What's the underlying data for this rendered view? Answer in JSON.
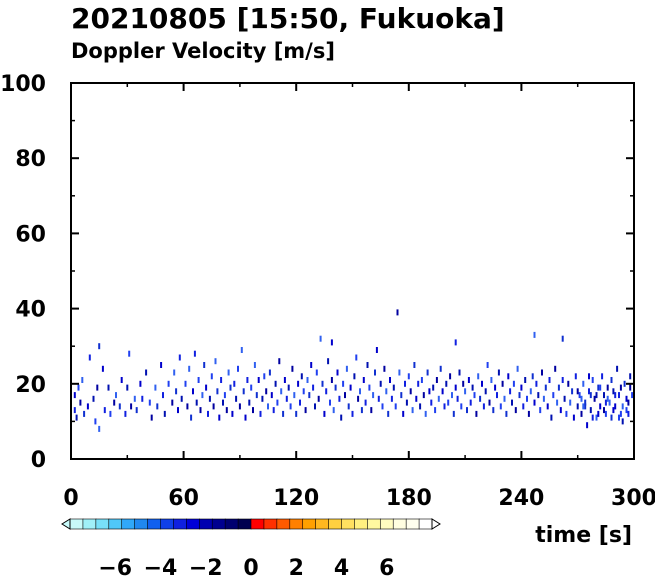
{
  "chart_data": {
    "type": "scatter",
    "title": "20210805 [15:50, Fukuoka]",
    "subtitle": "Doppler Velocity [m/s]",
    "xlabel": "time [s]",
    "ylabel": "",
    "xlim": [
      0,
      300
    ],
    "ylim": [
      0,
      100
    ],
    "x_ticks": [
      "0",
      "60",
      "120",
      "180",
      "240",
      "300"
    ],
    "y_ticks": [
      "0",
      "20",
      "40",
      "60",
      "80",
      "100"
    ],
    "grid": false,
    "colorbar": {
      "tick_labels": [
        "−6",
        "−4",
        "−2",
        "0",
        "2",
        "4",
        "6"
      ],
      "tick_values": [
        -6,
        -4,
        -2,
        0,
        2,
        4,
        6
      ],
      "range": [
        -8,
        8
      ],
      "colors": [
        "#c8fafa",
        "#a0f0f8",
        "#78e0f8",
        "#50c8f8",
        "#30a8f8",
        "#2088f0",
        "#1060f0",
        "#1040e8",
        "#1020e0",
        "#0000d8",
        "#0000b0",
        "#000090",
        "#000070",
        "#000050",
        "#ff0000",
        "#ff3000",
        "#ff5a00",
        "#ff8000",
        "#ffa000",
        "#ffb820",
        "#ffd040",
        "#ffe060",
        "#fff080",
        "#fff8a0",
        "#fffcc0",
        "#fffee0",
        "#ffffee",
        "#ffffff"
      ]
    },
    "series": [
      {
        "points": [
          [
            2,
            17
          ],
          [
            2,
            13
          ],
          [
            3,
            11
          ],
          [
            4,
            19
          ],
          [
            5,
            15
          ],
          [
            6,
            21
          ],
          [
            7,
            12
          ],
          [
            9,
            14
          ],
          [
            10,
            27
          ],
          [
            12,
            16
          ],
          [
            13,
            10
          ],
          [
            14,
            19
          ],
          [
            15,
            8
          ],
          [
            15,
            30
          ],
          [
            17,
            24
          ],
          [
            18,
            13
          ],
          [
            20,
            19
          ],
          [
            21,
            12
          ],
          [
            23,
            15
          ],
          [
            24,
            17
          ],
          [
            26,
            14
          ],
          [
            27,
            21
          ],
          [
            29,
            12
          ],
          [
            30,
            19
          ],
          [
            31,
            28
          ],
          [
            32,
            14
          ],
          [
            34,
            16
          ],
          [
            35,
            13
          ],
          [
            37,
            20
          ],
          [
            38,
            16
          ],
          [
            40,
            23
          ],
          [
            42,
            15
          ],
          [
            43,
            11
          ],
          [
            45,
            19
          ],
          [
            46,
            14
          ],
          [
            48,
            25
          ],
          [
            49,
            17
          ],
          [
            50,
            12
          ],
          [
            52,
            20
          ],
          [
            54,
            15
          ],
          [
            55,
            23
          ],
          [
            56,
            18
          ],
          [
            57,
            13
          ],
          [
            58,
            27
          ],
          [
            59,
            16
          ],
          [
            61,
            20
          ],
          [
            62,
            14
          ],
          [
            63,
            24
          ],
          [
            64,
            11
          ],
          [
            65,
            18
          ],
          [
            66,
            28
          ],
          [
            67,
            15
          ],
          [
            68,
            21
          ],
          [
            69,
            13
          ],
          [
            70,
            17
          ],
          [
            71,
            25
          ],
          [
            72,
            19
          ],
          [
            73,
            12
          ],
          [
            74,
            16
          ],
          [
            75,
            22
          ],
          [
            76,
            14
          ],
          [
            77,
            26
          ],
          [
            78,
            18
          ],
          [
            79,
            11
          ],
          [
            80,
            21
          ],
          [
            81,
            15
          ],
          [
            82,
            17
          ],
          [
            83,
            13
          ],
          [
            84,
            23
          ],
          [
            85,
            19
          ],
          [
            86,
            12
          ],
          [
            87,
            20
          ],
          [
            88,
            16
          ],
          [
            89,
            24
          ],
          [
            90,
            14
          ],
          [
            91,
            29
          ],
          [
            92,
            18
          ],
          [
            93,
            11
          ],
          [
            94,
            21
          ],
          [
            95,
            15
          ],
          [
            96,
            19
          ],
          [
            97,
            13
          ],
          [
            98,
            25
          ],
          [
            99,
            17
          ],
          [
            100,
            21
          ],
          [
            101,
            12
          ],
          [
            102,
            16
          ],
          [
            103,
            22
          ],
          [
            104,
            18
          ],
          [
            105,
            14
          ],
          [
            106,
            23
          ],
          [
            107,
            17
          ],
          [
            108,
            13
          ],
          [
            109,
            20
          ],
          [
            110,
            15
          ],
          [
            111,
            26
          ],
          [
            112,
            18
          ],
          [
            113,
            12
          ],
          [
            114,
            21
          ],
          [
            115,
            16
          ],
          [
            116,
            19
          ],
          [
            117,
            14
          ],
          [
            118,
            24
          ],
          [
            119,
            17
          ],
          [
            120,
            12
          ],
          [
            121,
            20
          ],
          [
            122,
            15
          ],
          [
            123,
            22
          ],
          [
            124,
            18
          ],
          [
            125,
            13
          ],
          [
            126,
            21
          ],
          [
            127,
            17
          ],
          [
            128,
            25
          ],
          [
            129,
            19
          ],
          [
            130,
            14
          ],
          [
            131,
            23
          ],
          [
            132,
            16
          ],
          [
            133,
            32
          ],
          [
            134,
            20
          ],
          [
            135,
            12
          ],
          [
            136,
            18
          ],
          [
            137,
            26
          ],
          [
            138,
            15
          ],
          [
            139,
            21
          ],
          [
            140,
            13
          ],
          [
            141,
            19
          ],
          [
            142,
            23
          ],
          [
            143,
            16
          ],
          [
            144,
            11
          ],
          [
            145,
            20
          ],
          [
            146,
            17
          ],
          [
            147,
            24
          ],
          [
            148,
            14
          ],
          [
            149,
            19
          ],
          [
            150,
            12
          ],
          [
            151,
            22
          ],
          [
            152,
            27
          ],
          [
            153,
            16
          ],
          [
            154,
            18
          ],
          [
            155,
            13
          ],
          [
            156,
            21
          ],
          [
            157,
            15
          ],
          [
            158,
            25
          ],
          [
            159,
            19
          ],
          [
            160,
            13
          ],
          [
            161,
            17
          ],
          [
            162,
            23
          ],
          [
            163,
            29
          ],
          [
            164,
            16
          ],
          [
            165,
            20
          ],
          [
            166,
            14
          ],
          [
            167,
            24
          ],
          [
            168,
            18
          ],
          [
            169,
            12
          ],
          [
            170,
            21
          ],
          [
            171,
            16
          ],
          [
            172,
            19
          ],
          [
            173,
            14
          ],
          [
            174,
            39
          ],
          [
            175,
            23
          ],
          [
            176,
            17
          ],
          [
            177,
            12
          ],
          [
            178,
            20
          ],
          [
            179,
            15
          ],
          [
            180,
            22
          ],
          [
            181,
            18
          ],
          [
            182,
            13
          ],
          [
            183,
            25
          ],
          [
            184,
            16
          ],
          [
            185,
            20
          ],
          [
            186,
            14
          ],
          [
            187,
            21
          ],
          [
            188,
            17
          ],
          [
            189,
            12
          ],
          [
            190,
            23
          ],
          [
            191,
            18
          ],
          [
            192,
            15
          ],
          [
            193,
            19
          ],
          [
            194,
            13
          ],
          [
            195,
            21
          ],
          [
            196,
            16
          ],
          [
            197,
            24
          ],
          [
            198,
            18
          ],
          [
            199,
            14
          ],
          [
            200,
            20
          ],
          [
            201,
            15
          ],
          [
            202,
            22
          ],
          [
            203,
            17
          ],
          [
            204,
            12
          ],
          [
            205,
            19
          ],
          [
            206,
            16
          ],
          [
            207,
            23
          ],
          [
            208,
            14
          ],
          [
            209,
            20
          ],
          [
            210,
            18
          ],
          [
            211,
            13
          ],
          [
            212,
            21
          ],
          [
            213,
            15
          ],
          [
            214,
            19
          ],
          [
            215,
            17
          ],
          [
            216,
            12
          ],
          [
            217,
            22
          ],
          [
            218,
            16
          ],
          [
            219,
            20
          ],
          [
            220,
            14
          ],
          [
            221,
            18
          ],
          [
            222,
            25
          ],
          [
            223,
            15
          ],
          [
            224,
            21
          ],
          [
            225,
            13
          ],
          [
            226,
            19
          ],
          [
            227,
            17
          ],
          [
            228,
            23
          ],
          [
            229,
            14
          ],
          [
            230,
            20
          ],
          [
            231,
            16
          ],
          [
            232,
            12
          ],
          [
            233,
            22
          ],
          [
            234,
            18
          ],
          [
            235,
            15
          ],
          [
            236,
            20
          ],
          [
            237,
            13
          ],
          [
            238,
            24
          ],
          [
            239,
            17
          ],
          [
            240,
            19
          ],
          [
            241,
            14
          ],
          [
            242,
            21
          ],
          [
            243,
            16
          ],
          [
            244,
            12
          ],
          [
            245,
            18
          ],
          [
            246,
            22
          ],
          [
            247,
            15
          ],
          [
            248,
            20
          ],
          [
            249,
            17
          ],
          [
            250,
            13
          ],
          [
            251,
            23
          ],
          [
            252,
            16
          ],
          [
            253,
            19
          ],
          [
            254,
            14
          ],
          [
            255,
            21
          ],
          [
            256,
            11
          ],
          [
            257,
            17
          ],
          [
            258,
            24
          ],
          [
            259,
            15
          ],
          [
            260,
            19
          ],
          [
            261,
            13
          ],
          [
            262,
            21
          ],
          [
            263,
            16
          ],
          [
            264,
            12
          ],
          [
            265,
            20
          ],
          [
            266,
            15
          ],
          [
            267,
            18
          ],
          [
            268,
            11
          ],
          [
            269,
            22
          ],
          [
            270,
            14
          ],
          [
            271,
            17
          ],
          [
            272,
            12
          ],
          [
            273,
            20
          ],
          [
            274,
            15
          ],
          [
            275,
            9
          ],
          [
            276,
            18
          ],
          [
            277,
            13
          ],
          [
            278,
            21
          ],
          [
            279,
            16
          ],
          [
            280,
            11
          ],
          [
            281,
            19
          ],
          [
            282,
            14
          ],
          [
            283,
            22
          ],
          [
            284,
            17
          ],
          [
            285,
            12
          ],
          [
            286,
            19
          ],
          [
            287,
            15
          ],
          [
            288,
            21
          ],
          [
            289,
            13
          ],
          [
            290,
            17
          ],
          [
            291,
            24
          ],
          [
            292,
            11
          ],
          [
            293,
            19
          ],
          [
            294,
            14
          ],
          [
            295,
            20
          ],
          [
            296,
            16
          ],
          [
            297,
            12
          ],
          [
            298,
            22
          ],
          [
            299,
            17
          ],
          [
            270,
            18
          ],
          [
            272,
            16
          ],
          [
            274,
            14
          ],
          [
            276,
            22
          ],
          [
            278,
            11
          ],
          [
            280,
            17
          ],
          [
            282,
            19
          ],
          [
            284,
            13
          ],
          [
            286,
            16
          ],
          [
            288,
            11
          ],
          [
            290,
            14
          ],
          [
            292,
            17
          ],
          [
            294,
            10
          ],
          [
            296,
            13
          ],
          [
            298,
            19
          ],
          [
            273,
            14
          ],
          [
            277,
            17
          ],
          [
            281,
            12
          ],
          [
            285,
            15
          ],
          [
            289,
            18
          ],
          [
            293,
            12
          ],
          [
            297,
            15
          ],
          [
            247,
            33
          ],
          [
            262,
            32
          ],
          [
            139,
            31
          ],
          [
            205,
            31
          ]
        ]
      }
    ]
  }
}
